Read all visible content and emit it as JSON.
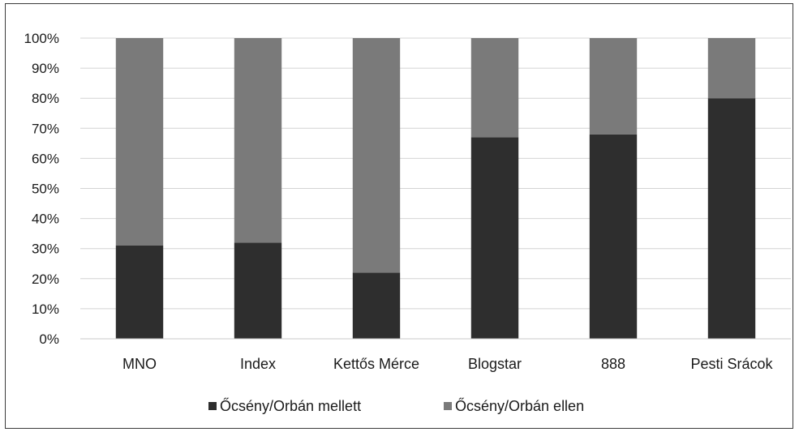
{
  "chart_data": {
    "type": "bar",
    "stacked": true,
    "categories": [
      "MNO",
      "Index",
      "Kettős Mérce",
      "Blogstar",
      "888",
      "Pesti Srácok"
    ],
    "series": [
      {
        "name": "Őcsény/Orbán mellett",
        "values": [
          31,
          32,
          22,
          67,
          68,
          80
        ],
        "color": "#2e2e2e"
      },
      {
        "name": "Őcsény/Orbán ellen",
        "values": [
          69,
          68,
          78,
          33,
          32,
          20
        ],
        "color": "#7a7a7a"
      }
    ],
    "y_ticks": [
      "0%",
      "10%",
      "20%",
      "30%",
      "40%",
      "50%",
      "60%",
      "70%",
      "80%",
      "90%",
      "100%"
    ],
    "ylim": [
      0,
      100
    ],
    "grid": true,
    "legend_position": "bottom",
    "title": "",
    "xlabel": "",
    "ylabel": ""
  }
}
